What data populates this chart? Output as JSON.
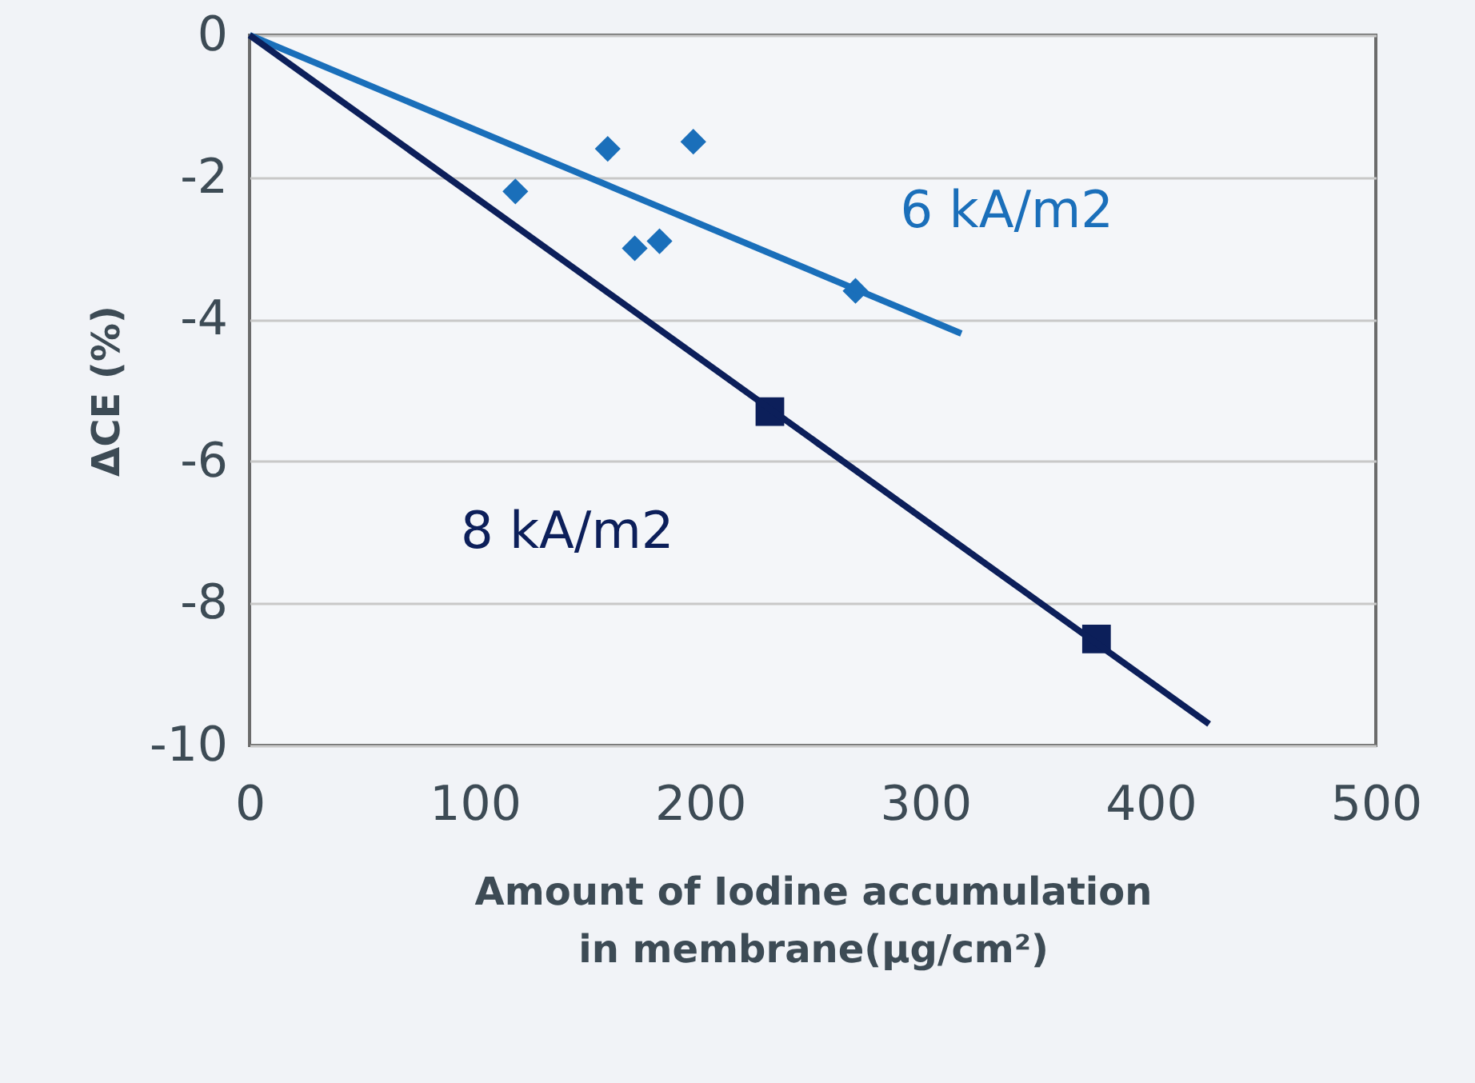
{
  "chart_data": {
    "type": "scatter",
    "xlabel": "Amount of Iodine accumulation\nin membrane(µg/cm²)",
    "ylabel": "ΔCE (%)",
    "xlim": [
      0,
      500
    ],
    "ylim": [
      -10,
      0
    ],
    "xticks": [
      0,
      100,
      200,
      300,
      400,
      500
    ],
    "yticks": [
      0,
      -2,
      -4,
      -6,
      -8,
      -10
    ],
    "grid": "y",
    "series": [
      {
        "name": "6 kA/m2",
        "marker": "diamond",
        "color": "#1a6fba",
        "x": [
          118,
          159,
          197,
          171,
          182,
          269
        ],
        "values": [
          -2.2,
          -1.6,
          -1.5,
          -3.0,
          -2.9,
          -3.6
        ]
      },
      {
        "type": "line",
        "marker": "none",
        "color": "#1a6fba",
        "x": [
          0,
          316
        ],
        "values": [
          0,
          -4.2
        ]
      },
      {
        "name": "8 kA/m2",
        "marker": "square",
        "color": "#0c1f5a",
        "x": [
          231,
          376
        ],
        "values": [
          -5.3,
          -8.5
        ]
      },
      {
        "type": "line",
        "marker": "none",
        "color": "#0c1f5a",
        "x": [
          0,
          426
        ],
        "values": [
          0,
          -9.7
        ]
      }
    ]
  }
}
